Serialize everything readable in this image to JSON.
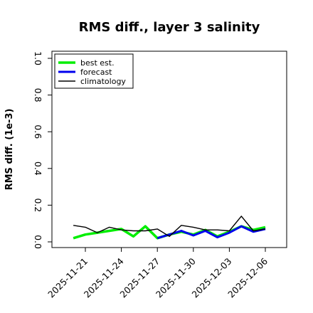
{
  "chart_data": {
    "type": "line",
    "title": "RMS diff., layer 3 salinity",
    "xlabel": "",
    "ylabel": "RMS diff. (1e-3)",
    "ylim": [
      0,
      1.0
    ],
    "xlim": [
      "2025-11-18",
      "2025-12-08"
    ],
    "yticks": [
      "0.0",
      "0.2",
      "0.4",
      "0.6",
      "0.8",
      "1.0"
    ],
    "xticks": [
      "2025-11-21",
      "2025-11-24",
      "2025-11-27",
      "2025-11-30",
      "2025-12-03",
      "2025-12-06"
    ],
    "highlighted_xtick": "2025-11-27",
    "highlight_color": "#228b22",
    "grid": false,
    "legend": {
      "placement": "top-left"
    },
    "x": [
      "2025-11-20",
      "2025-11-21",
      "2025-11-22",
      "2025-11-23",
      "2025-11-24",
      "2025-11-25",
      "2025-11-26",
      "2025-11-27",
      "2025-11-28",
      "2025-11-29",
      "2025-11-30",
      "2025-12-01",
      "2025-12-02",
      "2025-12-03",
      "2025-12-04",
      "2025-12-05",
      "2025-12-06"
    ],
    "series": [
      {
        "name": "best est.",
        "color": "#00ee00",
        "values": [
          0.02,
          0.04,
          0.05,
          0.06,
          0.07,
          0.03,
          0.085,
          0.02,
          0.04,
          0.055,
          0.04,
          0.065,
          0.03,
          0.055,
          0.085,
          0.065,
          0.08
        ]
      },
      {
        "name": "forecast",
        "color": "#0000ee",
        "values": [
          null,
          null,
          null,
          null,
          null,
          null,
          null,
          0.02,
          0.04,
          0.06,
          0.035,
          0.06,
          0.025,
          0.05,
          0.085,
          0.055,
          0.07
        ]
      },
      {
        "name": "climatology",
        "color": "#000000",
        "values": [
          0.09,
          0.08,
          0.05,
          0.08,
          0.065,
          0.06,
          0.06,
          0.07,
          0.03,
          0.09,
          0.08,
          0.065,
          0.065,
          0.06,
          0.14,
          0.06,
          0.07
        ]
      }
    ]
  }
}
